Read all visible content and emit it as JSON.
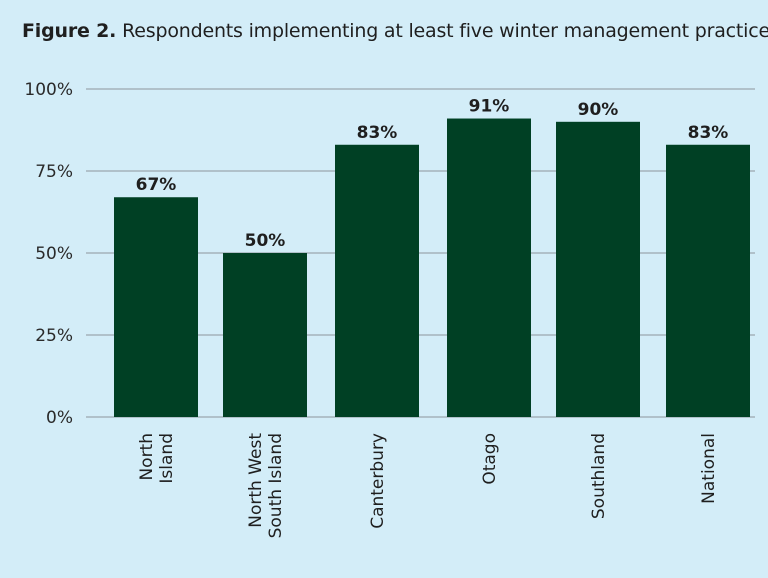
{
  "figure": {
    "label": "Figure 2.",
    "caption": "Respondents implementing at least five winter management practices*."
  },
  "colors": {
    "background": "#d3edf8",
    "bar": "#004024",
    "grid": "#8c959b"
  },
  "chart_data": {
    "type": "bar",
    "title": "Respondents implementing at least five winter management practices*.",
    "categories": [
      [
        "North",
        "Island"
      ],
      [
        "North West",
        "South Island"
      ],
      [
        "Canterbury"
      ],
      [
        "Otago"
      ],
      [
        "Southland"
      ],
      [
        "National"
      ]
    ],
    "values": [
      67,
      50,
      83,
      91,
      90,
      83
    ],
    "value_labels": [
      "67%",
      "50%",
      "83%",
      "91%",
      "90%",
      "83%"
    ],
    "ylim": [
      0,
      100
    ],
    "yticks": [
      0,
      25,
      50,
      75,
      100
    ],
    "ytick_labels": [
      "0%",
      "25%",
      "50%",
      "75%",
      "100%"
    ],
    "grid": true,
    "legend": "none",
    "xlabel": "",
    "ylabel": ""
  }
}
